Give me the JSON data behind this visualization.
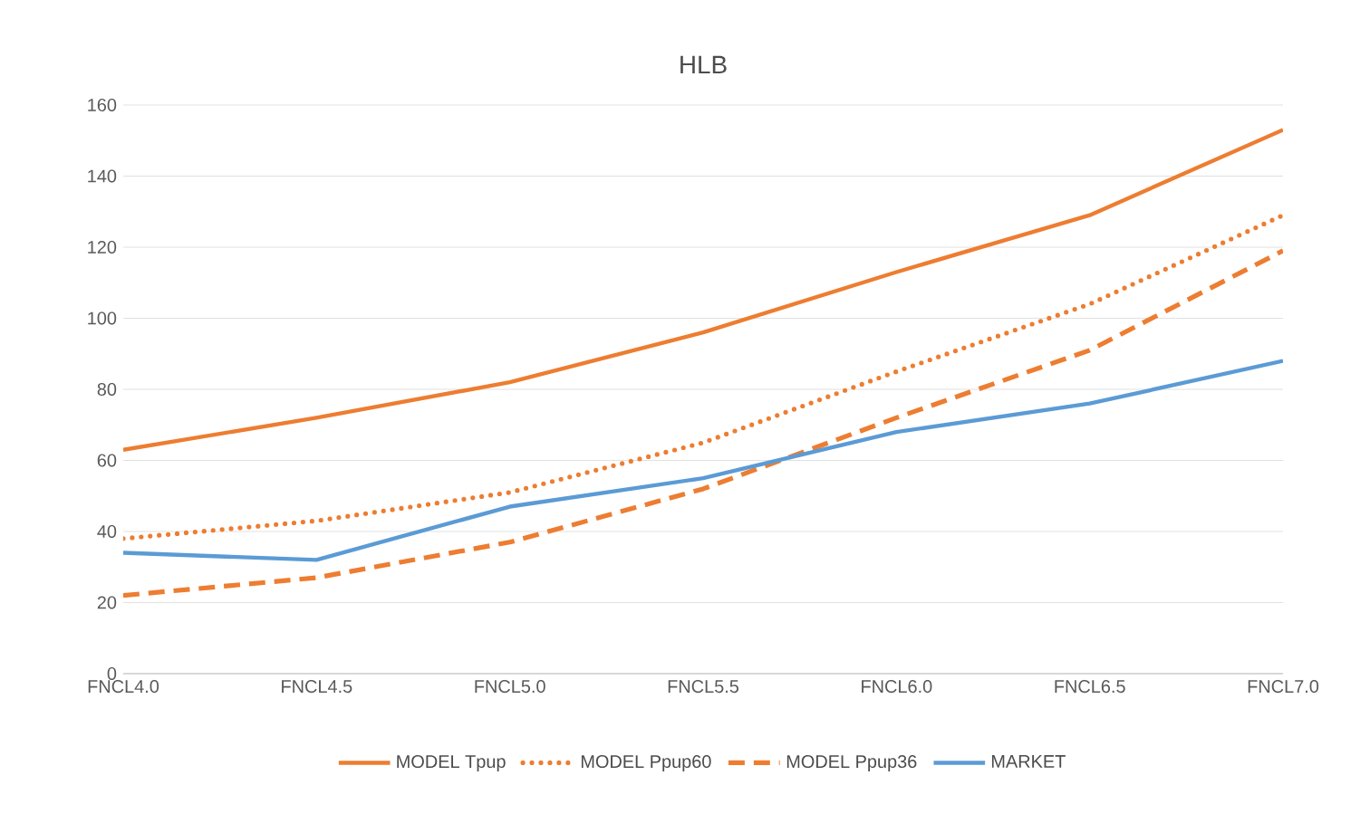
{
  "chart_data": {
    "type": "line",
    "title": "HLB",
    "categories": [
      "FNCL4.0",
      "FNCL4.5",
      "FNCL5.0",
      "FNCL5.5",
      "FNCL6.0",
      "FNCL6.5",
      "FNCL7.0"
    ],
    "series": [
      {
        "name": "MODEL Tpup",
        "color": "#ed7d31",
        "line_style": "solid",
        "values": [
          63,
          72,
          82,
          96,
          113,
          129,
          153
        ]
      },
      {
        "name": "MODEL Ppup60",
        "color": "#ed7d31",
        "line_style": "dotted",
        "values": [
          38,
          43,
          51,
          65,
          85,
          104,
          129
        ]
      },
      {
        "name": "MODEL Ppup36",
        "color": "#ed7d31",
        "line_style": "dashed",
        "values": [
          22,
          27,
          37,
          52,
          72,
          91,
          119
        ]
      },
      {
        "name": "MARKET",
        "color": "#5b9bd5",
        "line_style": "solid",
        "values": [
          34,
          32,
          47,
          55,
          68,
          76,
          88
        ]
      }
    ],
    "ylim": [
      0,
      160
    ],
    "yticks": [
      0,
      20,
      40,
      60,
      80,
      100,
      120,
      140,
      160
    ],
    "grid": "y",
    "legend": "bottom"
  }
}
